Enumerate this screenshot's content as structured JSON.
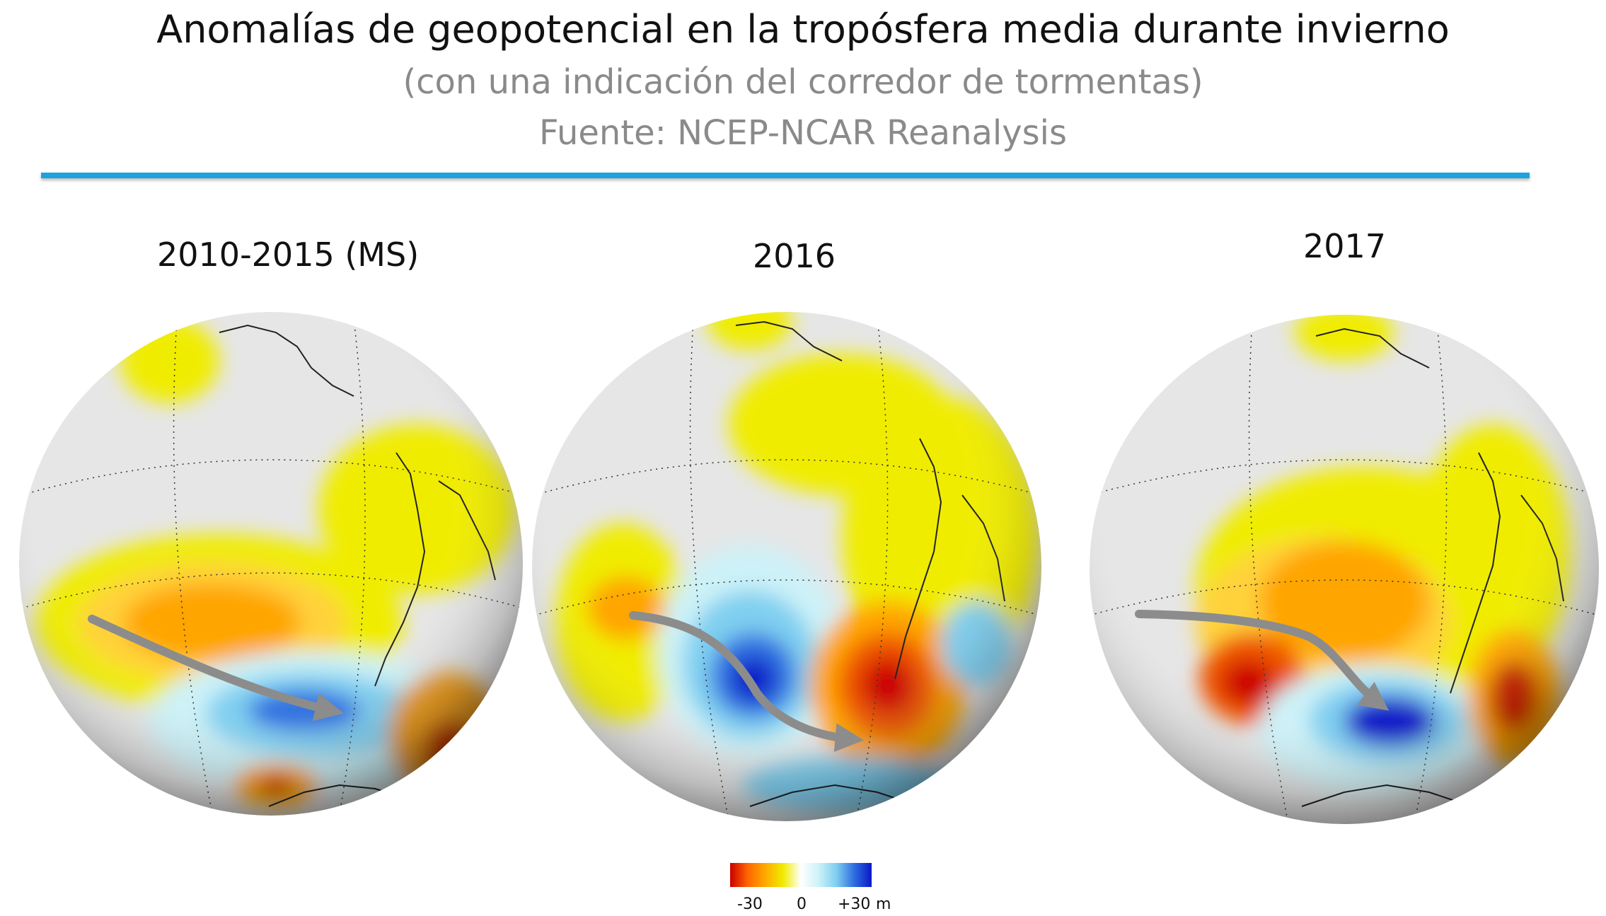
{
  "header": {
    "title": "Anomalías de geopotencial en la tropósfera media durante invierno",
    "subtitle": "(con una indicación del corredor de tormentas)",
    "source": "Fuente: NCEP-NCAR Reanalysis"
  },
  "panels": [
    {
      "title": "2010-2015 (MS)"
    },
    {
      "title": "2016"
    },
    {
      "title": "2017"
    }
  ],
  "colorbar": {
    "min_label": "-30",
    "mid_label": "0",
    "max_label": "+30",
    "unit": "m",
    "colors": [
      "#cc0000",
      "#ff6600",
      "#ffaa00",
      "#f0ec00",
      "#ffffff",
      "#cdf2f8",
      "#7fcff0",
      "#2f6fe0",
      "#0a18c8"
    ]
  },
  "colors": {
    "accent_rule": "#1aa3dc",
    "arrow": "#8c8c8c",
    "globe_base": "#e6e6e6"
  }
}
